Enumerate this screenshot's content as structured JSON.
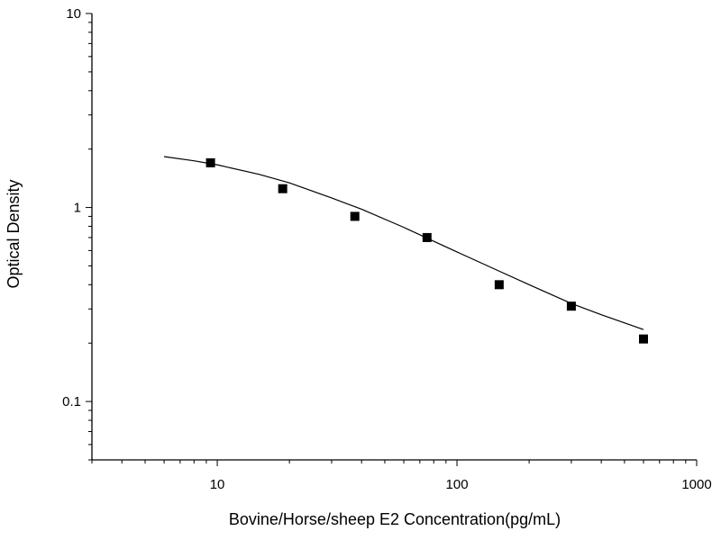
{
  "chart_data": {
    "type": "scatter",
    "title": "",
    "xlabel": "Bovine/Horse/sheep E2 Concentration(pg/mL)",
    "ylabel": "Optical Density",
    "x_scale": "log",
    "y_scale": "log",
    "xlim": [
      3,
      1000
    ],
    "ylim": [
      0.05,
      10
    ],
    "x_ticks": [
      {
        "value": 10,
        "label": "10"
      },
      {
        "value": 100,
        "label": "100"
      },
      {
        "value": 1000,
        "label": "1000"
      }
    ],
    "y_ticks": [
      {
        "value": 0.1,
        "label": "0.1"
      },
      {
        "value": 1,
        "label": "1"
      },
      {
        "value": 10,
        "label": "10"
      }
    ],
    "grid": false,
    "legend": "none",
    "series": [
      {
        "marker": "square",
        "x": [
          9.375,
          18.75,
          37.5,
          75,
          150,
          300,
          600
        ],
        "y": [
          1.7,
          1.25,
          0.9,
          0.7,
          0.4,
          0.31,
          0.21
        ]
      }
    ],
    "fit_curve": {
      "type": "line",
      "x": [
        6,
        8,
        10,
        15,
        20,
        30,
        40,
        60,
        80,
        100,
        150,
        200,
        300,
        400,
        600
      ],
      "y": [
        1.83,
        1.74,
        1.66,
        1.48,
        1.34,
        1.12,
        0.98,
        0.79,
        0.67,
        0.59,
        0.47,
        0.4,
        0.32,
        0.28,
        0.235
      ]
    },
    "colors": {
      "marker": "#000000",
      "line": "#000000",
      "axis": "#000000"
    }
  }
}
